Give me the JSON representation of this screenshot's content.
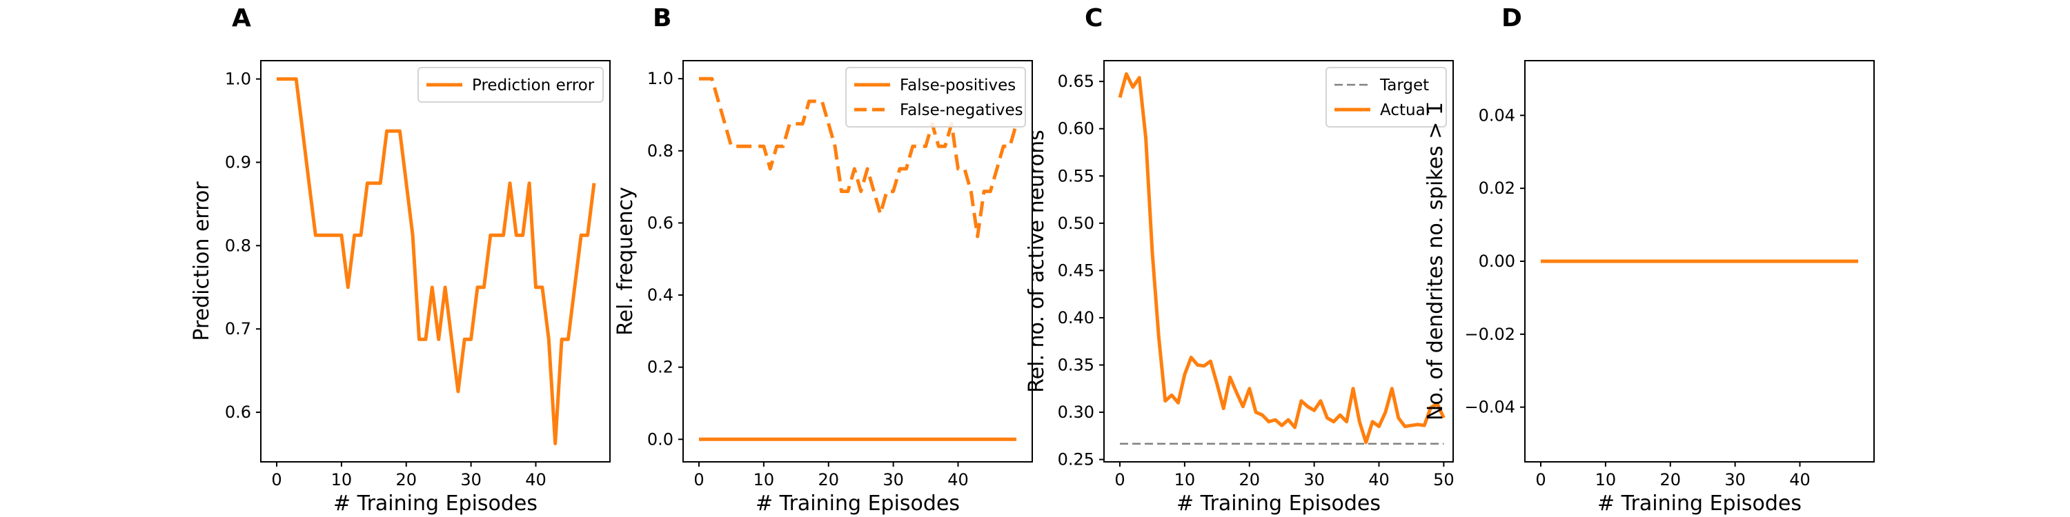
{
  "colors": {
    "series": "#ff7f0e",
    "target": "#808080"
  },
  "chart_data": [
    {
      "panel": "A",
      "type": "line",
      "xlabel": "# Training Episodes",
      "ylabel": "Prediction error",
      "xlim": [
        -2.45,
        51.45
      ],
      "ylim": [
        0.5405,
        1.022
      ],
      "xticks": [
        0,
        10,
        20,
        30,
        40
      ],
      "yticks": [
        0.6,
        0.7,
        0.8,
        0.9,
        1.0
      ],
      "ytick_labels": [
        "0.6",
        "0.7",
        "0.8",
        "0.9",
        "1.0"
      ],
      "legend": {
        "position": "top-right"
      },
      "series": [
        {
          "name": "Prediction error",
          "style": "solid",
          "x": [
            0,
            1,
            2,
            3,
            4,
            5,
            6,
            7,
            8,
            9,
            10,
            11,
            12,
            13,
            14,
            15,
            16,
            17,
            18,
            19,
            20,
            21,
            22,
            23,
            24,
            25,
            26,
            27,
            28,
            29,
            30,
            31,
            32,
            33,
            34,
            35,
            36,
            37,
            38,
            39,
            40,
            41,
            42,
            43,
            44,
            45,
            46,
            47,
            48,
            49
          ],
          "y": [
            1.0,
            1.0,
            1.0,
            1.0,
            0.9375,
            0.875,
            0.8125,
            0.8125,
            0.8125,
            0.8125,
            0.8125,
            0.75,
            0.8125,
            0.8125,
            0.875,
            0.875,
            0.875,
            0.9375,
            0.9375,
            0.9375,
            0.875,
            0.8125,
            0.6875,
            0.6875,
            0.75,
            0.6875,
            0.75,
            0.6875,
            0.625,
            0.6875,
            0.6875,
            0.75,
            0.75,
            0.8125,
            0.8125,
            0.8125,
            0.875,
            0.8125,
            0.8125,
            0.875,
            0.75,
            0.75,
            0.6875,
            0.5625,
            0.6875,
            0.6875,
            0.75,
            0.8125,
            0.8125,
            0.875
          ]
        }
      ]
    },
    {
      "panel": "B",
      "type": "line",
      "xlabel": "# Training Episodes",
      "ylabel": "Rel. frequency",
      "xlim": [
        -2.45,
        51.45
      ],
      "ylim": [
        -0.0625,
        1.05
      ],
      "xticks": [
        0,
        10,
        20,
        30,
        40
      ],
      "yticks": [
        0.0,
        0.2,
        0.4,
        0.6,
        0.8,
        1.0
      ],
      "ytick_labels": [
        "0.0",
        "0.2",
        "0.4",
        "0.6",
        "0.8",
        "1.0"
      ],
      "legend": {
        "position": "top-right"
      },
      "series": [
        {
          "name": "False-positives",
          "style": "solid",
          "x": [
            0,
            49
          ],
          "y": [
            0.0,
            0.0
          ]
        },
        {
          "name": "False-negatives",
          "style": "dashed",
          "x": [
            0,
            1,
            2,
            3,
            4,
            5,
            6,
            7,
            8,
            9,
            10,
            11,
            12,
            13,
            14,
            15,
            16,
            17,
            18,
            19,
            20,
            21,
            22,
            23,
            24,
            25,
            26,
            27,
            28,
            29,
            30,
            31,
            32,
            33,
            34,
            35,
            36,
            37,
            38,
            39,
            40,
            41,
            42,
            43,
            44,
            45,
            46,
            47,
            48,
            49
          ],
          "y": [
            1.0,
            1.0,
            1.0,
            0.9375,
            0.875,
            0.8125,
            0.8125,
            0.8125,
            0.8125,
            0.8125,
            0.8125,
            0.75,
            0.8125,
            0.8125,
            0.875,
            0.875,
            0.875,
            0.9375,
            0.9375,
            0.9375,
            0.875,
            0.8125,
            0.6875,
            0.6875,
            0.75,
            0.6875,
            0.75,
            0.6875,
            0.625,
            0.6875,
            0.6875,
            0.75,
            0.75,
            0.8125,
            0.8125,
            0.8125,
            0.875,
            0.8125,
            0.8125,
            0.875,
            0.75,
            0.75,
            0.6875,
            0.5625,
            0.6875,
            0.6875,
            0.75,
            0.8125,
            0.8125,
            0.875
          ]
        }
      ]
    },
    {
      "panel": "C",
      "type": "line",
      "xlabel": "# Training Episodes",
      "ylabel": "Rel. no. of active neurons",
      "xlim": [
        -2.45,
        51.45
      ],
      "ylim": [
        0.2475,
        0.672
      ],
      "xticks": [
        0,
        10,
        20,
        30,
        40,
        50
      ],
      "yticks": [
        0.25,
        0.3,
        0.35,
        0.4,
        0.45,
        0.5,
        0.55,
        0.6,
        0.65
      ],
      "ytick_labels": [
        "0.25",
        "0.30",
        "0.35",
        "0.40",
        "0.45",
        "0.50",
        "0.55",
        "0.60",
        "0.65"
      ],
      "legend": {
        "position": "top-right"
      },
      "series": [
        {
          "name": "Target",
          "style": "dashed-thin",
          "x": [
            0,
            50
          ],
          "y": [
            0.2667,
            0.2667
          ]
        },
        {
          "name": "Actual",
          "style": "solid",
          "x": [
            0,
            1,
            2,
            3,
            4,
            5,
            6,
            7,
            8,
            9,
            10,
            11,
            12,
            13,
            14,
            15,
            16,
            17,
            18,
            19,
            20,
            21,
            22,
            23,
            24,
            25,
            26,
            27,
            28,
            29,
            30,
            31,
            32,
            33,
            34,
            35,
            36,
            37,
            38,
            39,
            40,
            41,
            42,
            43,
            44,
            45,
            46,
            47,
            48,
            49,
            50
          ],
          "y": [
            0.633,
            0.658,
            0.644,
            0.654,
            0.59,
            0.47,
            0.38,
            0.312,
            0.318,
            0.31,
            0.34,
            0.358,
            0.35,
            0.349,
            0.354,
            0.33,
            0.304,
            0.337,
            0.321,
            0.306,
            0.325,
            0.3,
            0.297,
            0.29,
            0.292,
            0.286,
            0.292,
            0.284,
            0.312,
            0.306,
            0.302,
            0.312,
            0.294,
            0.29,
            0.297,
            0.29,
            0.325,
            0.29,
            0.268,
            0.29,
            0.285,
            0.3,
            0.325,
            0.294,
            0.285,
            0.286,
            0.287,
            0.286,
            0.305,
            0.309,
            0.294
          ]
        }
      ]
    },
    {
      "panel": "D",
      "type": "line",
      "xlabel": "# Training Episodes",
      "ylabel": "No. of dendrites no. spikes > 1",
      "xlim": [
        -2.45,
        51.45
      ],
      "ylim": [
        -0.055,
        0.055
      ],
      "xticks": [
        0,
        10,
        20,
        30,
        40
      ],
      "yticks": [
        -0.04,
        -0.02,
        0.0,
        0.02,
        0.04
      ],
      "ytick_labels": [
        "−0.04",
        "−0.02",
        "0.00",
        "0.02",
        "0.04"
      ],
      "series": [
        {
          "name": "",
          "style": "solid",
          "x": [
            0,
            49
          ],
          "y": [
            0.0,
            0.0
          ]
        }
      ]
    }
  ]
}
